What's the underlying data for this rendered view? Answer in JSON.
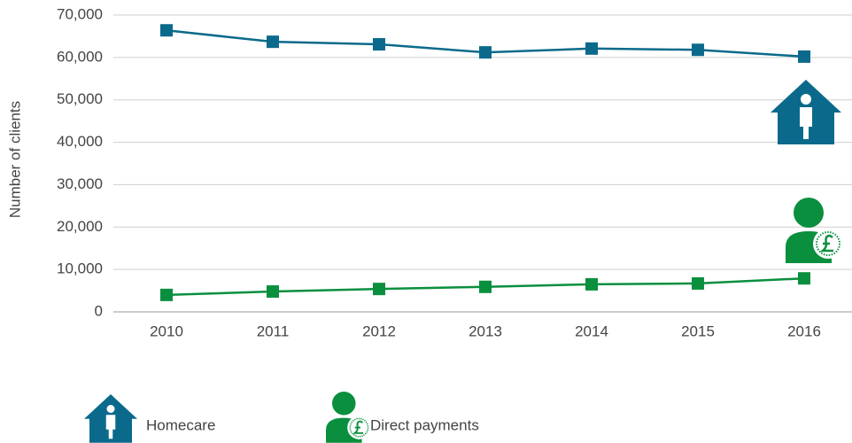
{
  "chart_data": {
    "type": "line",
    "y_label": "Number of clients",
    "categories": [
      "2010",
      "2011",
      "2012",
      "2013",
      "2014",
      "2015",
      "2016"
    ],
    "series": [
      {
        "name": "Homecare",
        "color": "#0b6a8b",
        "values": [
          66400,
          63700,
          63100,
          61200,
          62100,
          61800,
          60200
        ]
      },
      {
        "name": "Direct payments",
        "color": "#0a8f3e",
        "values": [
          4000,
          4800,
          5400,
          5900,
          6500,
          6700,
          7900
        ]
      }
    ],
    "ylim": [
      0,
      70000
    ],
    "yticks": [
      0,
      {
        "value": 10000,
        "label": "10,000"
      },
      {
        "value": 20000,
        "label": "20,000"
      },
      {
        "value": 30000,
        "label": "30,000"
      },
      {
        "value": 40000,
        "label": "40,000"
      },
      {
        "value": 50000,
        "label": "50,000"
      },
      {
        "value": 60000,
        "label": "60,000"
      },
      {
        "value": 70000,
        "label": "70,000"
      }
    ],
    "grid": true
  }
}
